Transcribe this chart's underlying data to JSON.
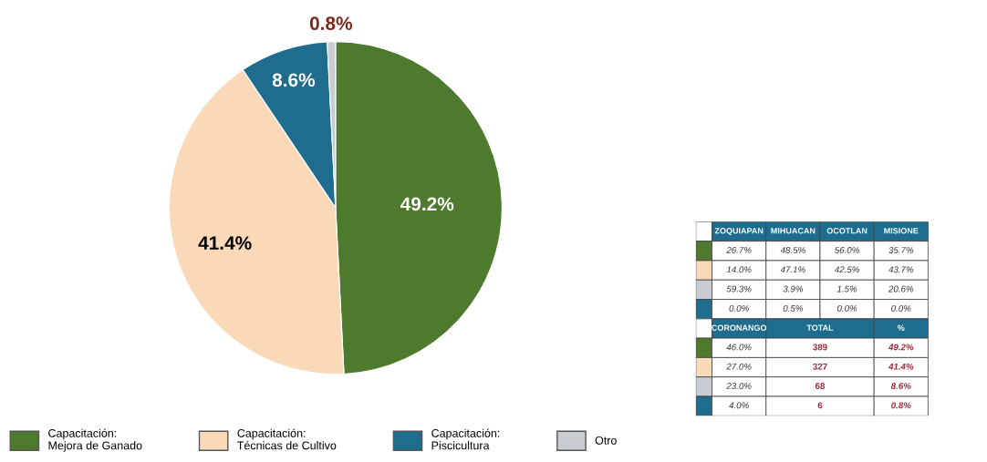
{
  "chart_data": [
    {
      "type": "pie",
      "categories": [
        "Capacitación:\nMejora de Ganado",
        "Capacitación:\nTécnicas de Cultivo",
        "Capacitación:\nPiscicultura",
        "Otro"
      ],
      "values": [
        49.2,
        41.4,
        8.6,
        0.8
      ],
      "colors": [
        "#4e7a2e",
        "#f9d9b8",
        "#1f6d8e",
        "#c9ccd0"
      ],
      "value_labels": [
        "49.2%",
        "41.4%",
        "8.6%",
        "0.8%"
      ],
      "legend": "bottom"
    },
    {
      "type": "other",
      "colors": [
        "#ffffff",
        "#4e7a2e",
        "#f9d9b8",
        "#c9ccd0",
        "#1f6d8e",
        "#ffffff",
        "#4e7a2e",
        "#f9d9b8",
        "#c9ccd0",
        "#1f6d8e"
      ],
      "annotations": [
        "ZOQUIAPAN",
        "MIHUACAN",
        "OCOTLAN",
        "MISIONE",
        "26.7%",
        "48.5%",
        "56.0%",
        "35.7%",
        "14.0%",
        "47.1%",
        "42.5%",
        "43.7%",
        "59.3%",
        "3.9%",
        "1.5%",
        "20.6%",
        "0.0%",
        "0.5%",
        "0.0%",
        "0.0%",
        "CORONANGO",
        "TOTAL",
        "%",
        "46.0%",
        "389",
        "49.2%",
        "27.0%",
        "327",
        "41.4%",
        "23.0%",
        "68",
        "8.6%",
        "4.0%",
        "6",
        "0.8%"
      ]
    }
  ]
}
